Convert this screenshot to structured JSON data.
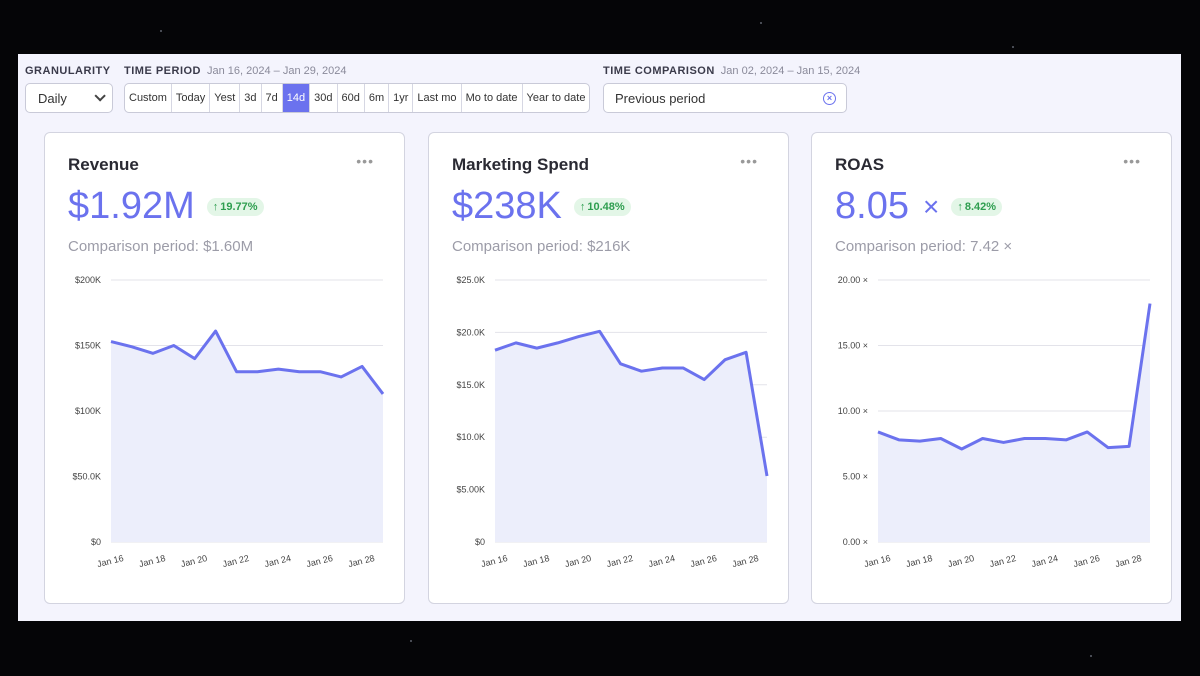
{
  "toolbar": {
    "granularity": {
      "label": "GRANULARITY",
      "value": "Daily"
    },
    "time_period": {
      "label": "TIME PERIOD",
      "range": "Jan 16, 2024 – Jan 29, 2024",
      "options": [
        "Custom",
        "Today",
        "Yest",
        "3d",
        "7d",
        "14d",
        "30d",
        "60d",
        "6m",
        "1yr",
        "Last mo",
        "Mo to date",
        "Year to date"
      ],
      "active": "14d"
    },
    "time_comparison": {
      "label": "TIME COMPARISON",
      "range": "Jan 02, 2024 – Jan 15, 2024",
      "value": "Previous period"
    }
  },
  "cards": [
    {
      "title": "Revenue",
      "value": "$1.92M",
      "unit": "",
      "delta": "19.77%",
      "comparison": "Comparison period: $1.60M"
    },
    {
      "title": "Marketing Spend",
      "value": "$238K",
      "unit": "",
      "delta": "10.48%",
      "comparison": "Comparison period: $216K"
    },
    {
      "title": "ROAS",
      "value": "8.05",
      "unit": "×",
      "delta": "8.42%",
      "comparison": "Comparison period: 7.42 ×"
    }
  ],
  "colors": {
    "accent": "#6b72ee",
    "fill": "#eceefb",
    "positive": "#2e9e4f",
    "positive_bg": "#e3f6e7"
  },
  "chart_data": [
    {
      "type": "area",
      "x": [
        "Jan 16",
        "Jan 17",
        "Jan 18",
        "Jan 19",
        "Jan 20",
        "Jan 21",
        "Jan 22",
        "Jan 23",
        "Jan 24",
        "Jan 25",
        "Jan 26",
        "Jan 27",
        "Jan 28",
        "Jan 29"
      ],
      "xticks": [
        "Jan 16",
        "Jan 18",
        "Jan 20",
        "Jan 22",
        "Jan 24",
        "Jan 26",
        "Jan 28"
      ],
      "values": [
        153000,
        149000,
        144000,
        150000,
        140000,
        161000,
        130000,
        130000,
        132000,
        130000,
        130000,
        126000,
        134000,
        113000
      ],
      "ylim": [
        0,
        200000
      ],
      "yticks": [
        0,
        50000,
        100000,
        150000,
        200000
      ],
      "ytick_labels": [
        "$0",
        "$50.0K",
        "$100K",
        "$150K",
        "$200K"
      ],
      "grid": true
    },
    {
      "type": "area",
      "x": [
        "Jan 16",
        "Jan 17",
        "Jan 18",
        "Jan 19",
        "Jan 20",
        "Jan 21",
        "Jan 22",
        "Jan 23",
        "Jan 24",
        "Jan 25",
        "Jan 26",
        "Jan 27",
        "Jan 28",
        "Jan 29"
      ],
      "xticks": [
        "Jan 16",
        "Jan 18",
        "Jan 20",
        "Jan 22",
        "Jan 24",
        "Jan 26",
        "Jan 28"
      ],
      "values": [
        18300,
        19000,
        18500,
        19000,
        19600,
        20100,
        17000,
        16300,
        16600,
        16600,
        15500,
        17400,
        18100,
        6300
      ],
      "ylim": [
        0,
        25000
      ],
      "yticks": [
        0,
        5000,
        10000,
        15000,
        20000,
        25000
      ],
      "ytick_labels": [
        "$0",
        "$5.00K",
        "$10.0K",
        "$15.0K",
        "$20.0K",
        "$25.0K"
      ],
      "grid": true
    },
    {
      "type": "area",
      "x": [
        "Jan 16",
        "Jan 17",
        "Jan 18",
        "Jan 19",
        "Jan 20",
        "Jan 21",
        "Jan 22",
        "Jan 23",
        "Jan 24",
        "Jan 25",
        "Jan 26",
        "Jan 27",
        "Jan 28",
        "Jan 29"
      ],
      "xticks": [
        "Jan 16",
        "Jan 18",
        "Jan 20",
        "Jan 22",
        "Jan 24",
        "Jan 26",
        "Jan 28"
      ],
      "values": [
        8.4,
        7.8,
        7.7,
        7.9,
        7.1,
        7.9,
        7.6,
        7.9,
        7.9,
        7.8,
        8.4,
        7.2,
        7.3,
        18.2
      ],
      "ylim": [
        0,
        20
      ],
      "yticks": [
        0,
        5,
        10,
        15,
        20
      ],
      "ytick_labels": [
        "0.00 ×",
        "5.00 ×",
        "10.00 ×",
        "15.00 ×",
        "20.00 ×"
      ],
      "grid": true
    }
  ]
}
